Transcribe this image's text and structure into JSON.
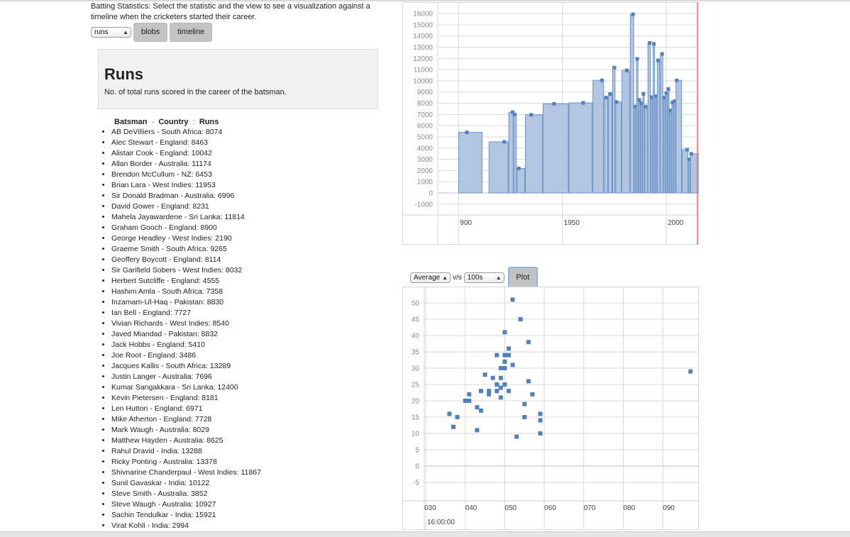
{
  "intro": "Batting Statistics: Select the statistic and the view to see a visualization against a timeline when the cricketers started their career.",
  "controls": {
    "stat_value": "runs",
    "blobs_label": "blobs",
    "timeline_label": "timeline"
  },
  "info": {
    "title": "Runs",
    "description": "No. of total runs scored in the career of the batsman."
  },
  "list_header": {
    "c1": "Batsman",
    "c2": "Country",
    "c3": "Runs"
  },
  "players": [
    "AB DeVilliers - South Africa: 8074",
    "Alec Stewart - England: 8463",
    "Alistair Cook - England: 10042",
    "Allan Border - Australia: 11174",
    "Brendon McCullum - NZ: 6453",
    "Brian Lara - West Indies: 11953",
    "Sir Donald Bradman - Australia: 6996",
    "David Gower - England: 8231",
    "Mahela Jayawardene - Sri Lanka: 11814",
    "Graham Gooch - England: 8900",
    "George Headley - West Indies: 2190",
    "Graeme Smith - South Africa: 9265",
    "Geoffery Boycott - England: 8114",
    "Sir Garifield Sobers - West Indies: 8032",
    "Herbert Sutcliffe - England: 4555",
    "Hashim Amla - South Africa: 7358",
    "Inzamam-Ul-Haq - Pakistan: 8830",
    "Ian Bell - England: 7727",
    "Vivian Richards - West Indies: 8540",
    "Javed Miandad - Pakistan: 8832",
    "Jack Hobbs - England: 5410",
    "Joe Root - England: 3486",
    "Jacques Kallis - South Africa: 13289",
    "Justin Langer - Australia: 7696",
    "Kumar Sangakkara - Sri Lanka: 12400",
    "Kevin Pietersen - England: 8181",
    "Len Hutton - England: 6971",
    "Mike Atherton - England: 7728",
    "Mark Waugh - Australia: 8029",
    "Matthew Hayden - Australia: 8625",
    "Rahul Dravid - India: 13288",
    "Ricky Ponting - Australia: 13378",
    "Shivnarine Chanderpaul - West Indies: 11867",
    "Sunil Gavaskar - India: 10122",
    "Steve Smith - Australia: 3852",
    "Steve Waugh - Australia: 10927",
    "Sachin Tendulkar - India: 15921",
    "Virat Kohli - India: 2994"
  ],
  "plot_controls": {
    "x_value": "Average",
    "vs_label": "v/s",
    "y_value": "100s",
    "plot_label": "Plot"
  },
  "colors": {
    "bar_fill": "#aec3e0",
    "bar_stroke": "#6d93c6",
    "marker": "#4f81bd",
    "grid": "#d9d9d9",
    "cursor_line": "#e8554e"
  },
  "chart_data": [
    {
      "type": "bar",
      "title": "",
      "xlabel": "",
      "ylabel": "",
      "xlim": [
        1890,
        2015
      ],
      "ylim": [
        -1000,
        16000
      ],
      "y_ticks": [
        -1000,
        0,
        1000,
        2000,
        3000,
        4000,
        5000,
        6000,
        7000,
        8000,
        9000,
        10000,
        11000,
        12000,
        13000,
        14000,
        15000,
        16000
      ],
      "x_tick_labels": [
        "900",
        "1950",
        "2000"
      ],
      "grid": true,
      "series": [
        {
          "values": [
            {
              "x": 1904,
              "y": 5410
            },
            {
              "x": 1922,
              "y": 4555
            },
            {
              "x": 1926,
              "y": 7200
            },
            {
              "x": 1927,
              "y": 6996
            },
            {
              "x": 1929,
              "y": 2190
            },
            {
              "x": 1935,
              "y": 6971
            },
            {
              "x": 1946,
              "y": 7950
            },
            {
              "x": 1960,
              "y": 8032
            },
            {
              "x": 1969,
              "y": 10042
            },
            {
              "x": 1971,
              "y": 8500
            },
            {
              "x": 1973,
              "y": 8830
            },
            {
              "x": 1975,
              "y": 11174
            },
            {
              "x": 1976,
              "y": 8114
            },
            {
              "x": 1981,
              "y": 10927
            },
            {
              "x": 1984,
              "y": 15921
            },
            {
              "x": 1985,
              "y": 7700
            },
            {
              "x": 1986,
              "y": 11953
            },
            {
              "x": 1987,
              "y": 8300
            },
            {
              "x": 1988,
              "y": 8000
            },
            {
              "x": 1989,
              "y": 8830
            },
            {
              "x": 1990,
              "y": 7696
            },
            {
              "x": 1992,
              "y": 13378
            },
            {
              "x": 1993,
              "y": 8540
            },
            {
              "x": 1994,
              "y": 13289
            },
            {
              "x": 1995,
              "y": 8625
            },
            {
              "x": 1996,
              "y": 11814
            },
            {
              "x": 1998,
              "y": 12400
            },
            {
              "x": 1999,
              "y": 8500
            },
            {
              "x": 2000,
              "y": 8900
            },
            {
              "x": 2001,
              "y": 9265
            },
            {
              "x": 2002,
              "y": 7358
            },
            {
              "x": 2003,
              "y": 8074
            },
            {
              "x": 2004,
              "y": 8181
            },
            {
              "x": 2005,
              "y": 10042
            },
            {
              "x": 2010,
              "y": 3852
            },
            {
              "x": 2011,
              "y": 2994
            },
            {
              "x": 2012,
              "y": 3486
            }
          ]
        }
      ]
    },
    {
      "type": "scatter",
      "title": "",
      "xlabel": "",
      "ylabel": "",
      "xlim": [
        1933,
        2098
      ],
      "ylim": [
        -10,
        55
      ],
      "y_ticks": [
        -5,
        0,
        5,
        10,
        15,
        20,
        25,
        30,
        35,
        40,
        45,
        50
      ],
      "x_tick_labels": [
        "030",
        "040",
        "050",
        "060",
        "070",
        "080",
        "090"
      ],
      "x_footer_label": "16:00:00",
      "grid": true,
      "series": [
        {
          "points": [
            {
              "x": 2036,
              "y": 16
            },
            {
              "x": 2037,
              "y": 12
            },
            {
              "x": 2038,
              "y": 15
            },
            {
              "x": 2040,
              "y": 20
            },
            {
              "x": 2041,
              "y": 22
            },
            {
              "x": 2041,
              "y": 20
            },
            {
              "x": 2043,
              "y": 18
            },
            {
              "x": 2043,
              "y": 11
            },
            {
              "x": 2044,
              "y": 17
            },
            {
              "x": 2044,
              "y": 23
            },
            {
              "x": 2045,
              "y": 28
            },
            {
              "x": 2046,
              "y": 23
            },
            {
              "x": 2046,
              "y": 22
            },
            {
              "x": 2047,
              "y": 27
            },
            {
              "x": 2048,
              "y": 34
            },
            {
              "x": 2048,
              "y": 25
            },
            {
              "x": 2048,
              "y": 23
            },
            {
              "x": 2049,
              "y": 30
            },
            {
              "x": 2049,
              "y": 27
            },
            {
              "x": 2049,
              "y": 24
            },
            {
              "x": 2049,
              "y": 21
            },
            {
              "x": 2050,
              "y": 41
            },
            {
              "x": 2050,
              "y": 34
            },
            {
              "x": 2050,
              "y": 32
            },
            {
              "x": 2050,
              "y": 30
            },
            {
              "x": 2050,
              "y": 25
            },
            {
              "x": 2051,
              "y": 36
            },
            {
              "x": 2051,
              "y": 34
            },
            {
              "x": 2051,
              "y": 23
            },
            {
              "x": 2052,
              "y": 51
            },
            {
              "x": 2052,
              "y": 31
            },
            {
              "x": 2053,
              "y": 9
            },
            {
              "x": 2054,
              "y": 45
            },
            {
              "x": 2055,
              "y": 19
            },
            {
              "x": 2055,
              "y": 15
            },
            {
              "x": 2056,
              "y": 38
            },
            {
              "x": 2056,
              "y": 26
            },
            {
              "x": 2057,
              "y": 22
            },
            {
              "x": 2059,
              "y": 16
            },
            {
              "x": 2059,
              "y": 14
            },
            {
              "x": 2059,
              "y": 10
            },
            {
              "x": 2097,
              "y": 29
            }
          ]
        }
      ]
    }
  ]
}
